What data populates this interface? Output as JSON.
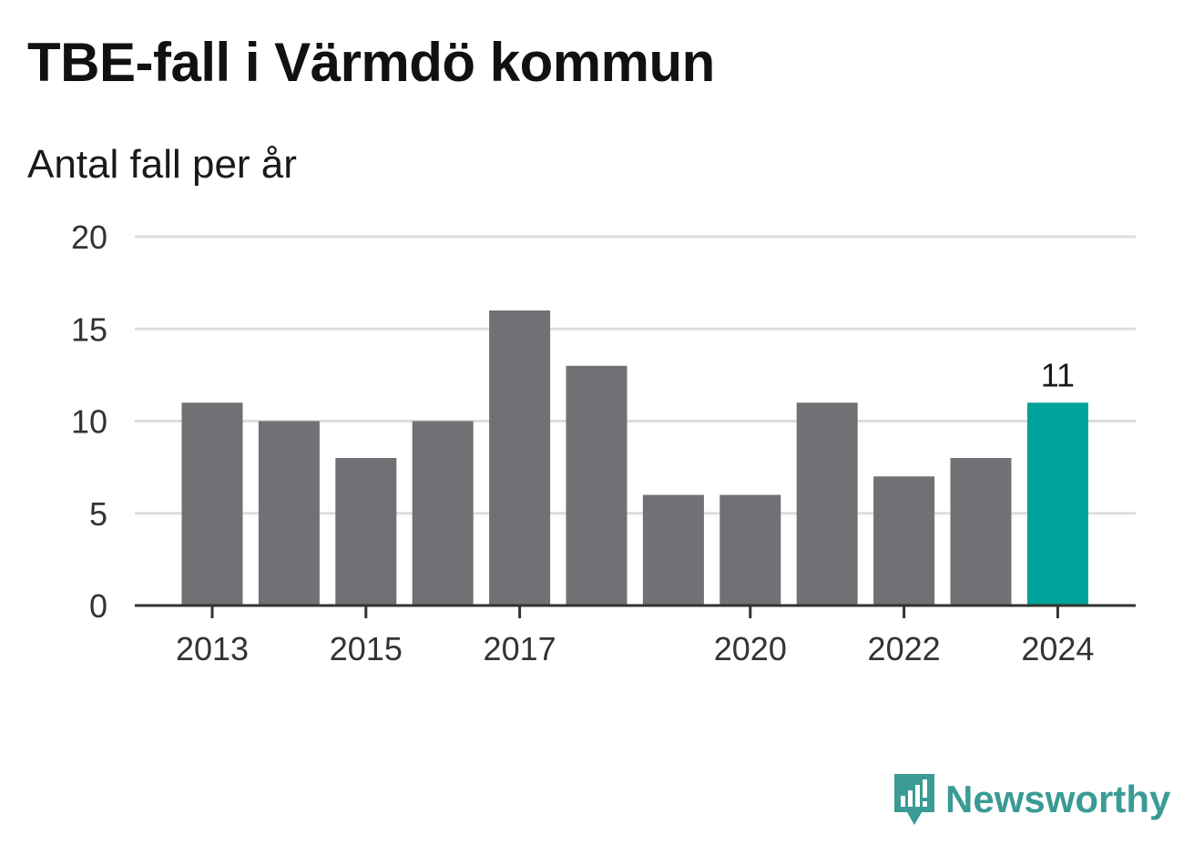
{
  "title": "TBE-fall i Värmdö kommun",
  "subtitle": "Antal fall per år",
  "brand": {
    "name": "Newsworthy",
    "icon": "newsworthy-logo-icon"
  },
  "colors": {
    "bar": "#717075",
    "highlight": "#00a39a",
    "grid": "#dddddd",
    "axis": "#333333",
    "text": "#333333",
    "brand": "#3a9b95"
  },
  "chart_data": {
    "type": "bar",
    "categories": [
      "2013",
      "2014",
      "2015",
      "2016",
      "2017",
      "2018",
      "2019",
      "2020",
      "2021",
      "2022",
      "2023",
      "2024"
    ],
    "values": [
      11,
      10,
      8,
      10,
      16,
      13,
      6,
      6,
      11,
      7,
      8,
      11
    ],
    "x_tick_labels": [
      "2013",
      "2015",
      "2017",
      "2020",
      "2022",
      "2024"
    ],
    "y_ticks": [
      0,
      5,
      10,
      15,
      20
    ],
    "ylim": [
      0,
      20
    ],
    "highlight_category": "2024",
    "data_labels": [
      {
        "category": "2024",
        "text": "11"
      }
    ],
    "grid": true,
    "legend": "none",
    "title": "TBE-fall i Värmdö kommun",
    "ylabel": "Antal fall per år",
    "xlabel": ""
  }
}
